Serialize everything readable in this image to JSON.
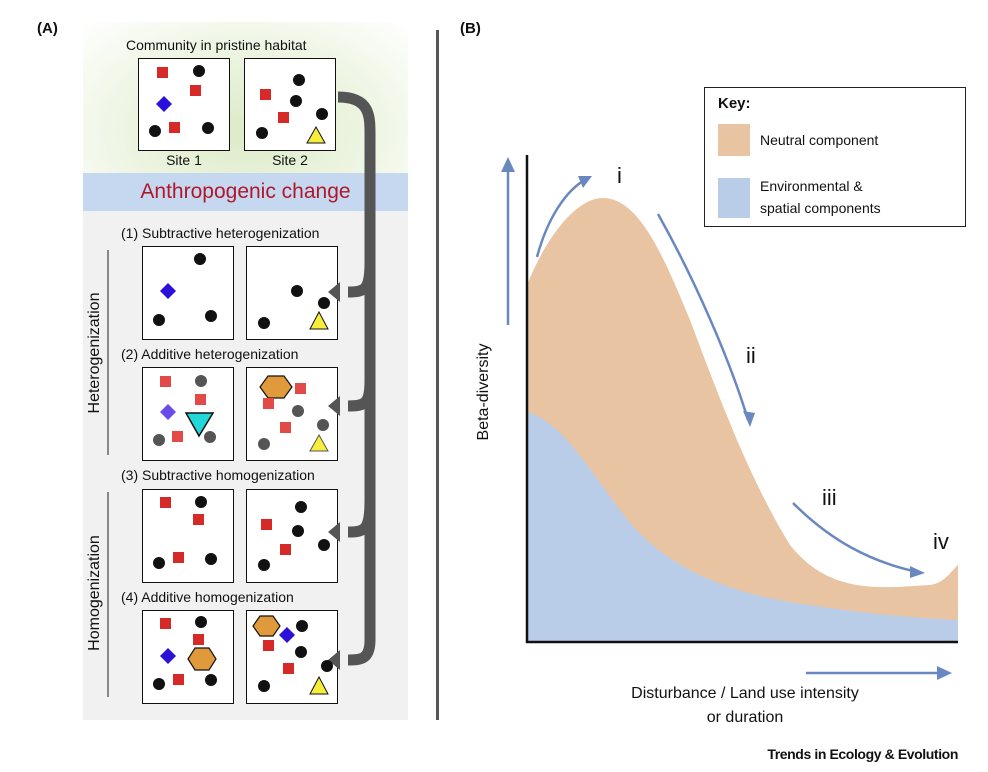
{
  "panel_a": {
    "label": "(A)",
    "pristine_title": "Community in pristine habitat",
    "site1_label": "Site 1",
    "site2_label": "Site 2",
    "anthropogenic_label": "Anthropogenic change",
    "scenarios": [
      {
        "label": "(1) Subtractive heterogenization"
      },
      {
        "label": "(2) Additive heterogenization"
      },
      {
        "label": "(3) Subtractive homogenization"
      },
      {
        "label": "(4) Additive homogenization"
      }
    ],
    "group_labels": {
      "heterogenization": "Heterogenization",
      "homogenization": "Homogenization"
    }
  },
  "panel_b": {
    "label": "(B)",
    "key_title": "Key:",
    "key_items": [
      {
        "label": "Neutral component",
        "color": "#e8c4a2"
      },
      {
        "label_line1": "Environmental &",
        "label_line2": "spatial components",
        "color": "#b9cde8"
      }
    ],
    "phases": [
      "i",
      "ii",
      "iii",
      "iv"
    ],
    "ylabel": "Beta-diversity",
    "xlabel_line1": "Disturbance / Land use intensity",
    "xlabel_line2": "or duration",
    "arrow_color": "#6a88c0"
  },
  "credit": "Trends in Ecology & Evolution",
  "colors": {
    "square": "#d62a28",
    "circle": "#111111",
    "diamond": "#2b10d8",
    "triangle": "#f7ee3c",
    "hexagon": "#e09a3c",
    "cyan_triangle": "#22d7d8",
    "gray_arrow": "#555555"
  }
}
